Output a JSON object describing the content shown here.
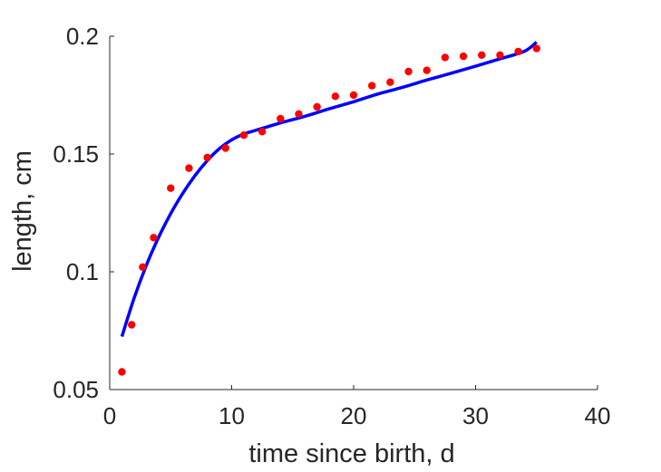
{
  "chart_data": {
    "type": "scatter",
    "title": "",
    "xlabel": "time since birth, d",
    "ylabel": "length, cm",
    "xlim": [
      0,
      40
    ],
    "ylim": [
      0.05,
      0.2
    ],
    "xticks": [
      0,
      10,
      20,
      30,
      40
    ],
    "yticks": [
      0.05,
      0.1,
      0.15,
      0.2
    ],
    "xtick_labels": [
      "0",
      "10",
      "20",
      "30",
      "40"
    ],
    "ytick_labels": [
      "0.05",
      "0.1",
      "0.15",
      "0.2"
    ],
    "grid": false,
    "box": "left-bottom",
    "series": [
      {
        "kind": "scatter",
        "color": "#ff0000",
        "x": [
          1,
          1.8,
          2.7,
          3.6,
          5,
          6.5,
          8,
          9.5,
          11,
          12.5,
          14,
          15.5,
          17,
          18.5,
          20,
          21.5,
          23,
          24.5,
          26,
          27.5,
          29,
          30.5,
          32,
          33.5,
          35
        ],
        "y": [
          0.0575,
          0.0775,
          0.102,
          0.1145,
          0.1355,
          0.144,
          0.1485,
          0.1525,
          0.158,
          0.1595,
          0.165,
          0.167,
          0.17,
          0.1745,
          0.175,
          0.179,
          0.1805,
          0.185,
          0.1855,
          0.191,
          0.1915,
          0.192,
          0.192,
          0.1935,
          0.1948
        ]
      },
      {
        "kind": "line",
        "color": "#0000ff",
        "x": [
          1,
          2,
          3,
          4,
          5,
          6,
          7,
          8,
          9,
          10,
          11,
          12,
          14,
          16,
          18,
          20,
          22,
          24,
          26,
          28,
          30,
          32,
          34,
          35
        ],
        "y": [
          0.0725,
          0.0888,
          0.1027,
          0.1145,
          0.1247,
          0.1334,
          0.1409,
          0.1472,
          0.1523,
          0.156,
          0.1585,
          0.1601,
          0.1632,
          0.166,
          0.1692,
          0.1722,
          0.1755,
          0.1783,
          0.1814,
          0.1843,
          0.1873,
          0.1904,
          0.1936,
          0.1975
        ]
      }
    ]
  }
}
